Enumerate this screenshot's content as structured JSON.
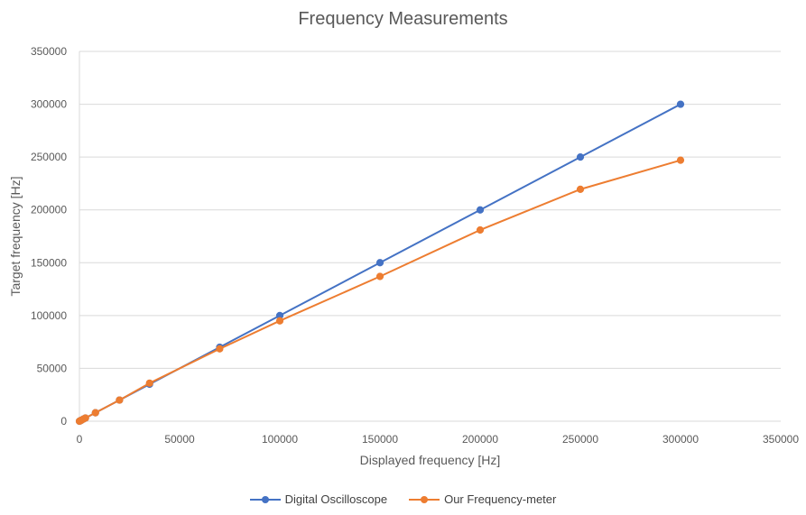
{
  "chart_data": {
    "type": "scatter",
    "title": "Frequency Measurements",
    "xlabel": "Displayed frequency [Hz]",
    "ylabel": "Target frequency [Hz]",
    "xlim": [
      0,
      350000
    ],
    "ylim": [
      0,
      350000
    ],
    "x_ticks": [
      0,
      50000,
      100000,
      150000,
      200000,
      250000,
      300000,
      350000
    ],
    "y_ticks": [
      0,
      50000,
      100000,
      150000,
      200000,
      250000,
      300000,
      350000
    ],
    "grid": "horizontal",
    "legend_position": "bottom",
    "markers": true,
    "lines": "straight",
    "series": [
      {
        "name": "Digital Oscilloscope",
        "color": "#4472C4",
        "points": [
          [
            0,
            0
          ],
          [
            500,
            500
          ],
          [
            1000,
            1000
          ],
          [
            2000,
            2000
          ],
          [
            3000,
            3000
          ],
          [
            8000,
            8000
          ],
          [
            20000,
            20000
          ],
          [
            35000,
            35000
          ],
          [
            70000,
            70000
          ],
          [
            100000,
            100000
          ],
          [
            150000,
            150000
          ],
          [
            200000,
            200000
          ],
          [
            250000,
            250000
          ],
          [
            300000,
            300000
          ]
        ]
      },
      {
        "name": "Our Frequency-meter",
        "color": "#ED7D31",
        "points": [
          [
            0,
            0
          ],
          [
            500,
            500
          ],
          [
            1000,
            1000
          ],
          [
            2000,
            2000
          ],
          [
            3000,
            3000
          ],
          [
            8000,
            8000
          ],
          [
            20000,
            20000
          ],
          [
            35000,
            36000
          ],
          [
            70000,
            68500
          ],
          [
            100000,
            95000
          ],
          [
            150000,
            137000
          ],
          [
            200000,
            181000
          ],
          [
            250000,
            219500
          ],
          [
            300000,
            247000
          ]
        ]
      }
    ]
  }
}
